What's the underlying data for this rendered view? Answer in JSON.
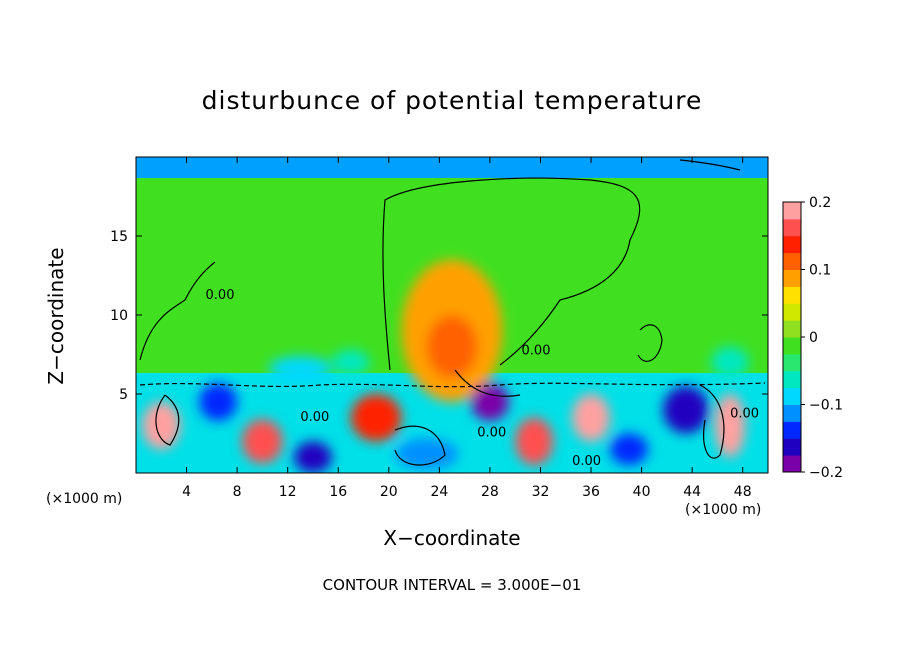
{
  "chart_data": {
    "type": "heatmap",
    "title": "disturbunce of potential temperature",
    "xlabel": "X−coordinate",
    "ylabel": "Z−coordinate",
    "x_unit": "(×1000 m)",
    "z_unit": "(×1000 m)",
    "footnote": "CONTOUR INTERVAL = 3.000E−01",
    "xlim": [
      0,
      50
    ],
    "ylim": [
      0,
      20
    ],
    "x_ticks": [
      4,
      8,
      12,
      16,
      20,
      24,
      28,
      32,
      36,
      40,
      44,
      48
    ],
    "x_tick_labels": [
      "4",
      "8",
      "12",
      "16",
      "20",
      "24",
      "28",
      "32",
      "36",
      "40",
      "44",
      "48"
    ],
    "y_ticks": [
      5,
      10,
      15
    ],
    "y_tick_labels": [
      "5",
      "10",
      "15"
    ],
    "colorbar": {
      "range": [
        -0.2,
        0.2
      ],
      "ticks": [
        -0.2,
        -0.1,
        0,
        0.1,
        0.2
      ],
      "tick_labels": [
        "−0.2",
        "−0.1",
        "0",
        "0.1",
        "0.2"
      ],
      "colors": [
        "#7a00a8",
        "#2000c0",
        "#0028ff",
        "#0090ff",
        "#00d8ff",
        "#00e8c0",
        "#28e870",
        "#40e020",
        "#90e020",
        "#d0e800",
        "#ffe000",
        "#ffa000",
        "#ff6000",
        "#ff2000",
        "#ff5050",
        "#ffa0a0"
      ]
    },
    "contour_labels": [
      {
        "text": "0.00",
        "x": 5.5,
        "z": 11.0
      },
      {
        "text": "0.00",
        "x": 30.5,
        "z": 7.5
      },
      {
        "text": "0.00",
        "x": 13.0,
        "z": 3.3
      },
      {
        "text": "0.00",
        "x": 27.0,
        "z": 2.3
      },
      {
        "text": "0.00",
        "x": 34.5,
        "z": 0.5
      },
      {
        "text": "0.00",
        "x": 47.0,
        "z": 3.5
      }
    ],
    "regions": [
      {
        "x": 25.0,
        "z": 9.0,
        "rx": 4.0,
        "rz": 4.5,
        "value": 0.08
      },
      {
        "x": 25.0,
        "z": 8.0,
        "rx": 2.0,
        "rz": 2.0,
        "value": 0.12
      },
      {
        "x": 13.0,
        "z": 6.6,
        "rx": 2.5,
        "rz": 0.8,
        "value": -0.08
      },
      {
        "x": 17.0,
        "z": 7.0,
        "rx": 1.5,
        "rz": 0.8,
        "value": -0.06
      },
      {
        "x": 47.0,
        "z": 7.0,
        "rx": 1.5,
        "rz": 1.0,
        "value": -0.06
      },
      {
        "x": 2.0,
        "z": 3.0,
        "rx": 1.5,
        "rz": 1.5,
        "value": 0.18
      },
      {
        "x": 6.5,
        "z": 4.5,
        "rx": 1.5,
        "rz": 1.2,
        "value": -0.14
      },
      {
        "x": 10.0,
        "z": 2.0,
        "rx": 1.6,
        "rz": 1.4,
        "value": 0.16
      },
      {
        "x": 14.0,
        "z": 1.0,
        "rx": 1.5,
        "rz": 1.0,
        "value": -0.16
      },
      {
        "x": 19.0,
        "z": 3.5,
        "rx": 2.0,
        "rz": 1.5,
        "value": 0.14
      },
      {
        "x": 23.0,
        "z": 1.2,
        "rx": 2.5,
        "rz": 1.0,
        "value": -0.12
      },
      {
        "x": 28.0,
        "z": 4.5,
        "rx": 1.5,
        "rz": 1.2,
        "value": -0.18
      },
      {
        "x": 31.5,
        "z": 2.0,
        "rx": 1.5,
        "rz": 1.5,
        "value": 0.16
      },
      {
        "x": 36.0,
        "z": 3.5,
        "rx": 1.5,
        "rz": 1.5,
        "value": 0.18
      },
      {
        "x": 39.0,
        "z": 1.5,
        "rx": 1.5,
        "rz": 1.0,
        "value": -0.14
      },
      {
        "x": 43.5,
        "z": 4.0,
        "rx": 1.8,
        "rz": 1.5,
        "value": -0.16
      },
      {
        "x": 47.0,
        "z": 3.0,
        "rx": 1.2,
        "rz": 2.0,
        "value": 0.18
      }
    ]
  }
}
